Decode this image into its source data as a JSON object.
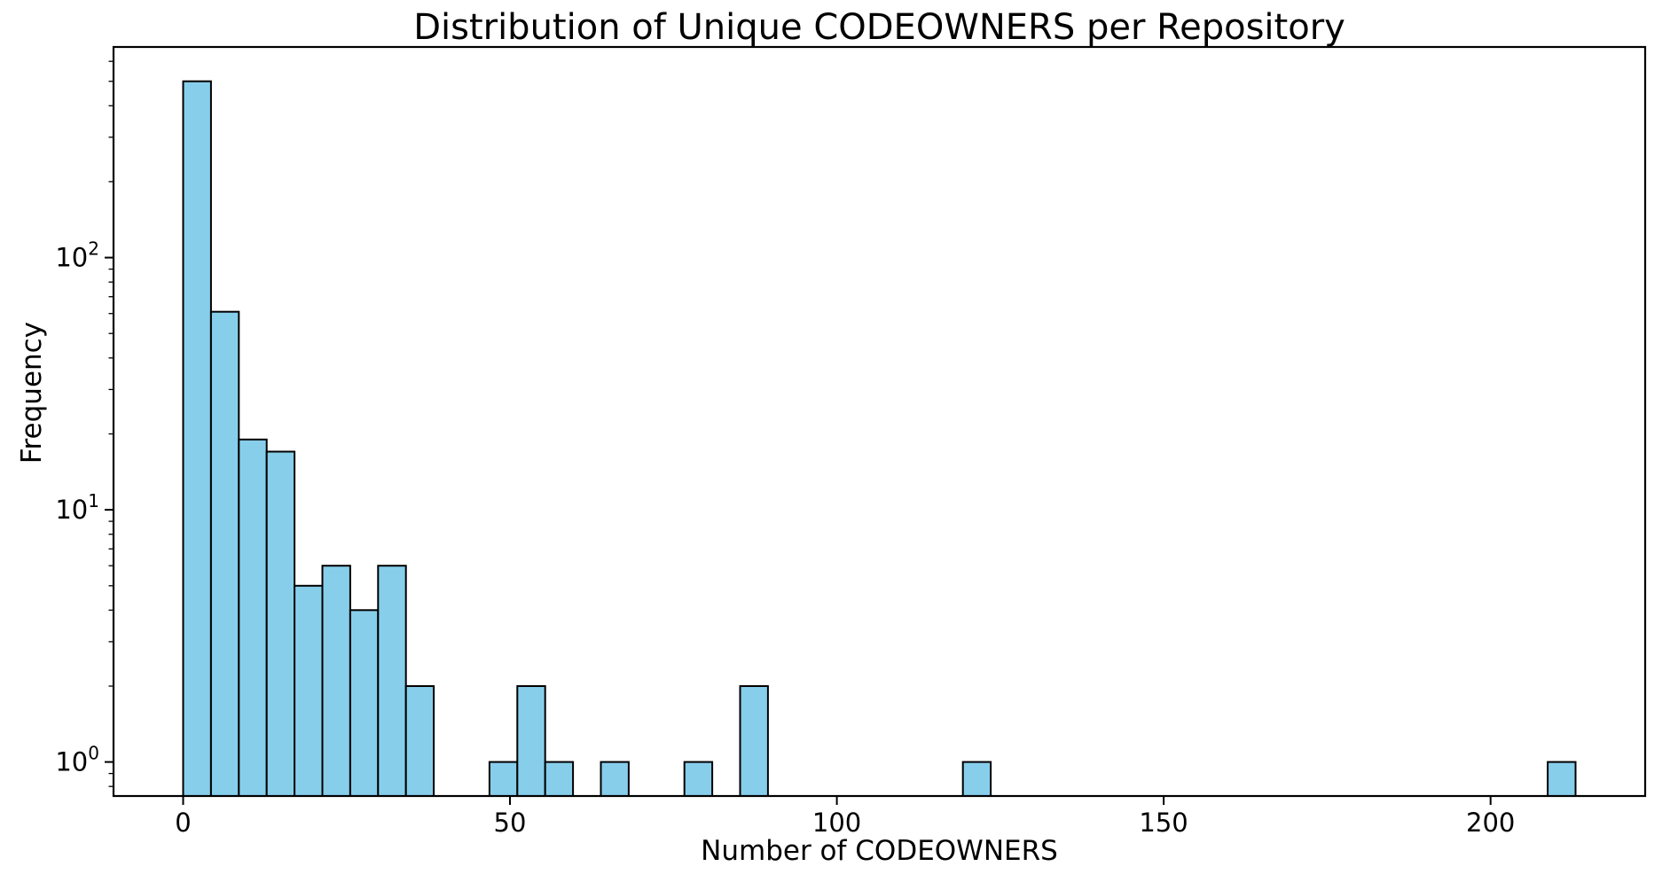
{
  "figure": {
    "background": "#ffffff",
    "text_color": "#000000"
  },
  "chart_data": {
    "type": "bar",
    "subtype": "histogram",
    "title": "Distribution of Unique CODEOWNERS per Repository",
    "xlabel": "Number of CODEOWNERS",
    "ylabel": "Frequency",
    "x_scale": "linear",
    "y_scale": "log",
    "xlim": [
      -10.65,
      223.65
    ],
    "ylim": [
      0.733,
      684
    ],
    "grid": false,
    "legend_position": "none",
    "bar_color": "#87CEEB",
    "bar_edge_color": "#000000",
    "axis_color": "#000000",
    "bin_width": 4.26,
    "x_ticks": [
      {
        "value": 0,
        "label": "0"
      },
      {
        "value": 50,
        "label": "50"
      },
      {
        "value": 100,
        "label": "100"
      },
      {
        "value": 150,
        "label": "150"
      },
      {
        "value": 200,
        "label": "200"
      }
    ],
    "y_ticks": [
      {
        "value": 1,
        "base": "10",
        "exponent": "0"
      },
      {
        "value": 10,
        "base": "10",
        "exponent": "1"
      },
      {
        "value": 100,
        "base": "10",
        "exponent": "2"
      }
    ],
    "bins": [
      {
        "start": 0.0,
        "end": 4.26,
        "count": 500
      },
      {
        "start": 4.26,
        "end": 8.52,
        "count": 61
      },
      {
        "start": 8.52,
        "end": 12.78,
        "count": 19
      },
      {
        "start": 12.78,
        "end": 17.04,
        "count": 17
      },
      {
        "start": 17.04,
        "end": 21.3,
        "count": 5
      },
      {
        "start": 21.3,
        "end": 25.56,
        "count": 6
      },
      {
        "start": 25.56,
        "end": 29.82,
        "count": 4
      },
      {
        "start": 29.82,
        "end": 34.08,
        "count": 6
      },
      {
        "start": 34.08,
        "end": 38.34,
        "count": 2
      },
      {
        "start": 46.86,
        "end": 51.12,
        "count": 1
      },
      {
        "start": 51.12,
        "end": 55.38,
        "count": 2
      },
      {
        "start": 55.38,
        "end": 59.64,
        "count": 1
      },
      {
        "start": 63.9,
        "end": 68.16,
        "count": 1
      },
      {
        "start": 76.68,
        "end": 80.94,
        "count": 1
      },
      {
        "start": 85.2,
        "end": 89.46,
        "count": 2
      },
      {
        "start": 119.28,
        "end": 123.54,
        "count": 1
      },
      {
        "start": 208.74,
        "end": 213.0,
        "count": 1
      }
    ]
  }
}
